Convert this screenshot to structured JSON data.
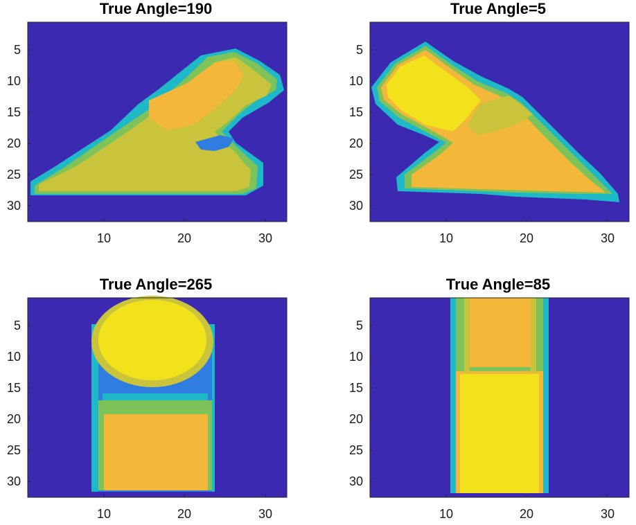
{
  "figure": {
    "colors": {
      "background": "#3b2ab1",
      "cyan": "#1fb8c7",
      "blue_light": "#2f7de0",
      "green": "#7ec35a",
      "yellow_green": "#c9c43b",
      "orange": "#f3b73a",
      "yellow": "#f2e21c",
      "axis": "#262626"
    },
    "colormap": "parula",
    "axes": {
      "x_ticks": [
        "10",
        "20",
        "30"
      ],
      "y_ticks": [
        "5",
        "10",
        "15",
        "20",
        "25",
        "30"
      ],
      "x_range": [
        0.5,
        32.5
      ],
      "y_range": [
        0.5,
        32.5
      ],
      "y_reversed": true
    },
    "panels": [
      {
        "id": "p1",
        "title": "True Angle=190"
      },
      {
        "id": "p2",
        "title": "True Angle=5"
      },
      {
        "id": "p3",
        "title": "True Angle=265"
      },
      {
        "id": "p4",
        "title": "True Angle=85"
      }
    ]
  }
}
